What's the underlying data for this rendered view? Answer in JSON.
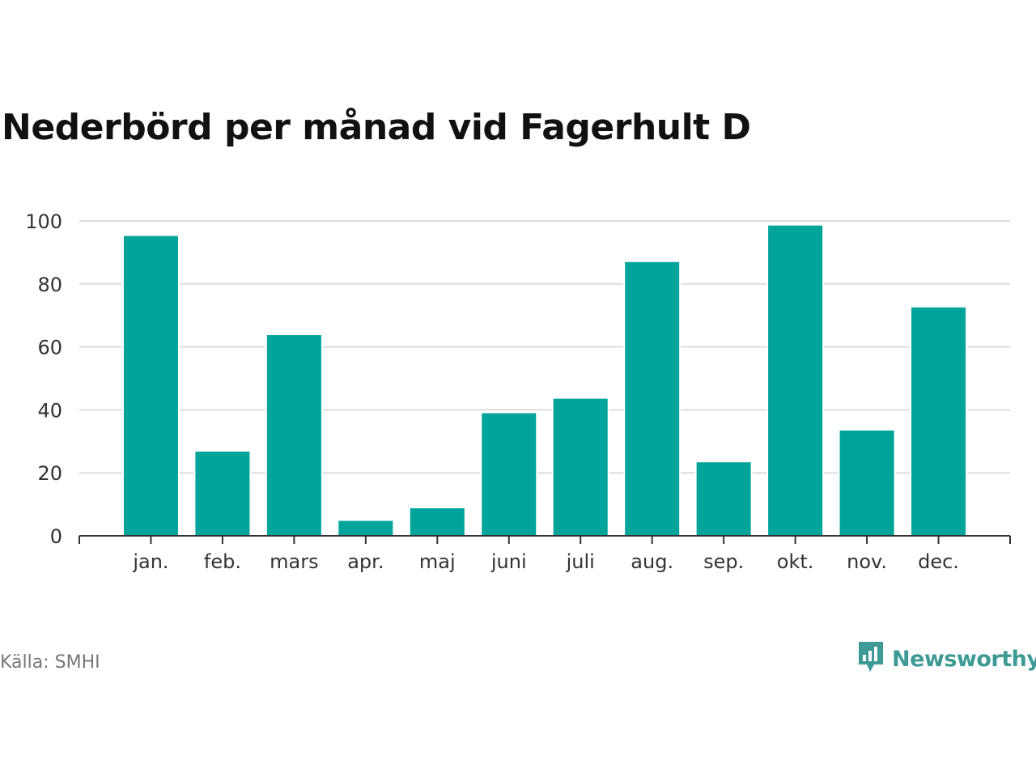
{
  "title": "Nederbörd per månad vid Fagerhult D",
  "source": "Källa: SMHI",
  "brand": {
    "name": "Newsworthy",
    "icon": "newsworthy-logo-icon",
    "color": "#3d9a94"
  },
  "chart_data": {
    "type": "bar",
    "categories": [
      "jan.",
      "feb.",
      "mars",
      "apr.",
      "maj",
      "juni",
      "juli",
      "aug.",
      "sep.",
      "okt.",
      "nov.",
      "dec."
    ],
    "values": [
      95.5,
      27,
      64,
      5,
      9,
      39.2,
      43.8,
      87.2,
      23.6,
      98.8,
      33.7,
      72.8
    ],
    "ylim": [
      0,
      100
    ],
    "yticks": [
      0,
      20,
      40,
      60,
      80,
      100
    ],
    "grid": true,
    "bar_color": "#00a49a",
    "title": "Nederbörd per månad vid Fagerhult D",
    "xlabel": "",
    "ylabel": ""
  }
}
